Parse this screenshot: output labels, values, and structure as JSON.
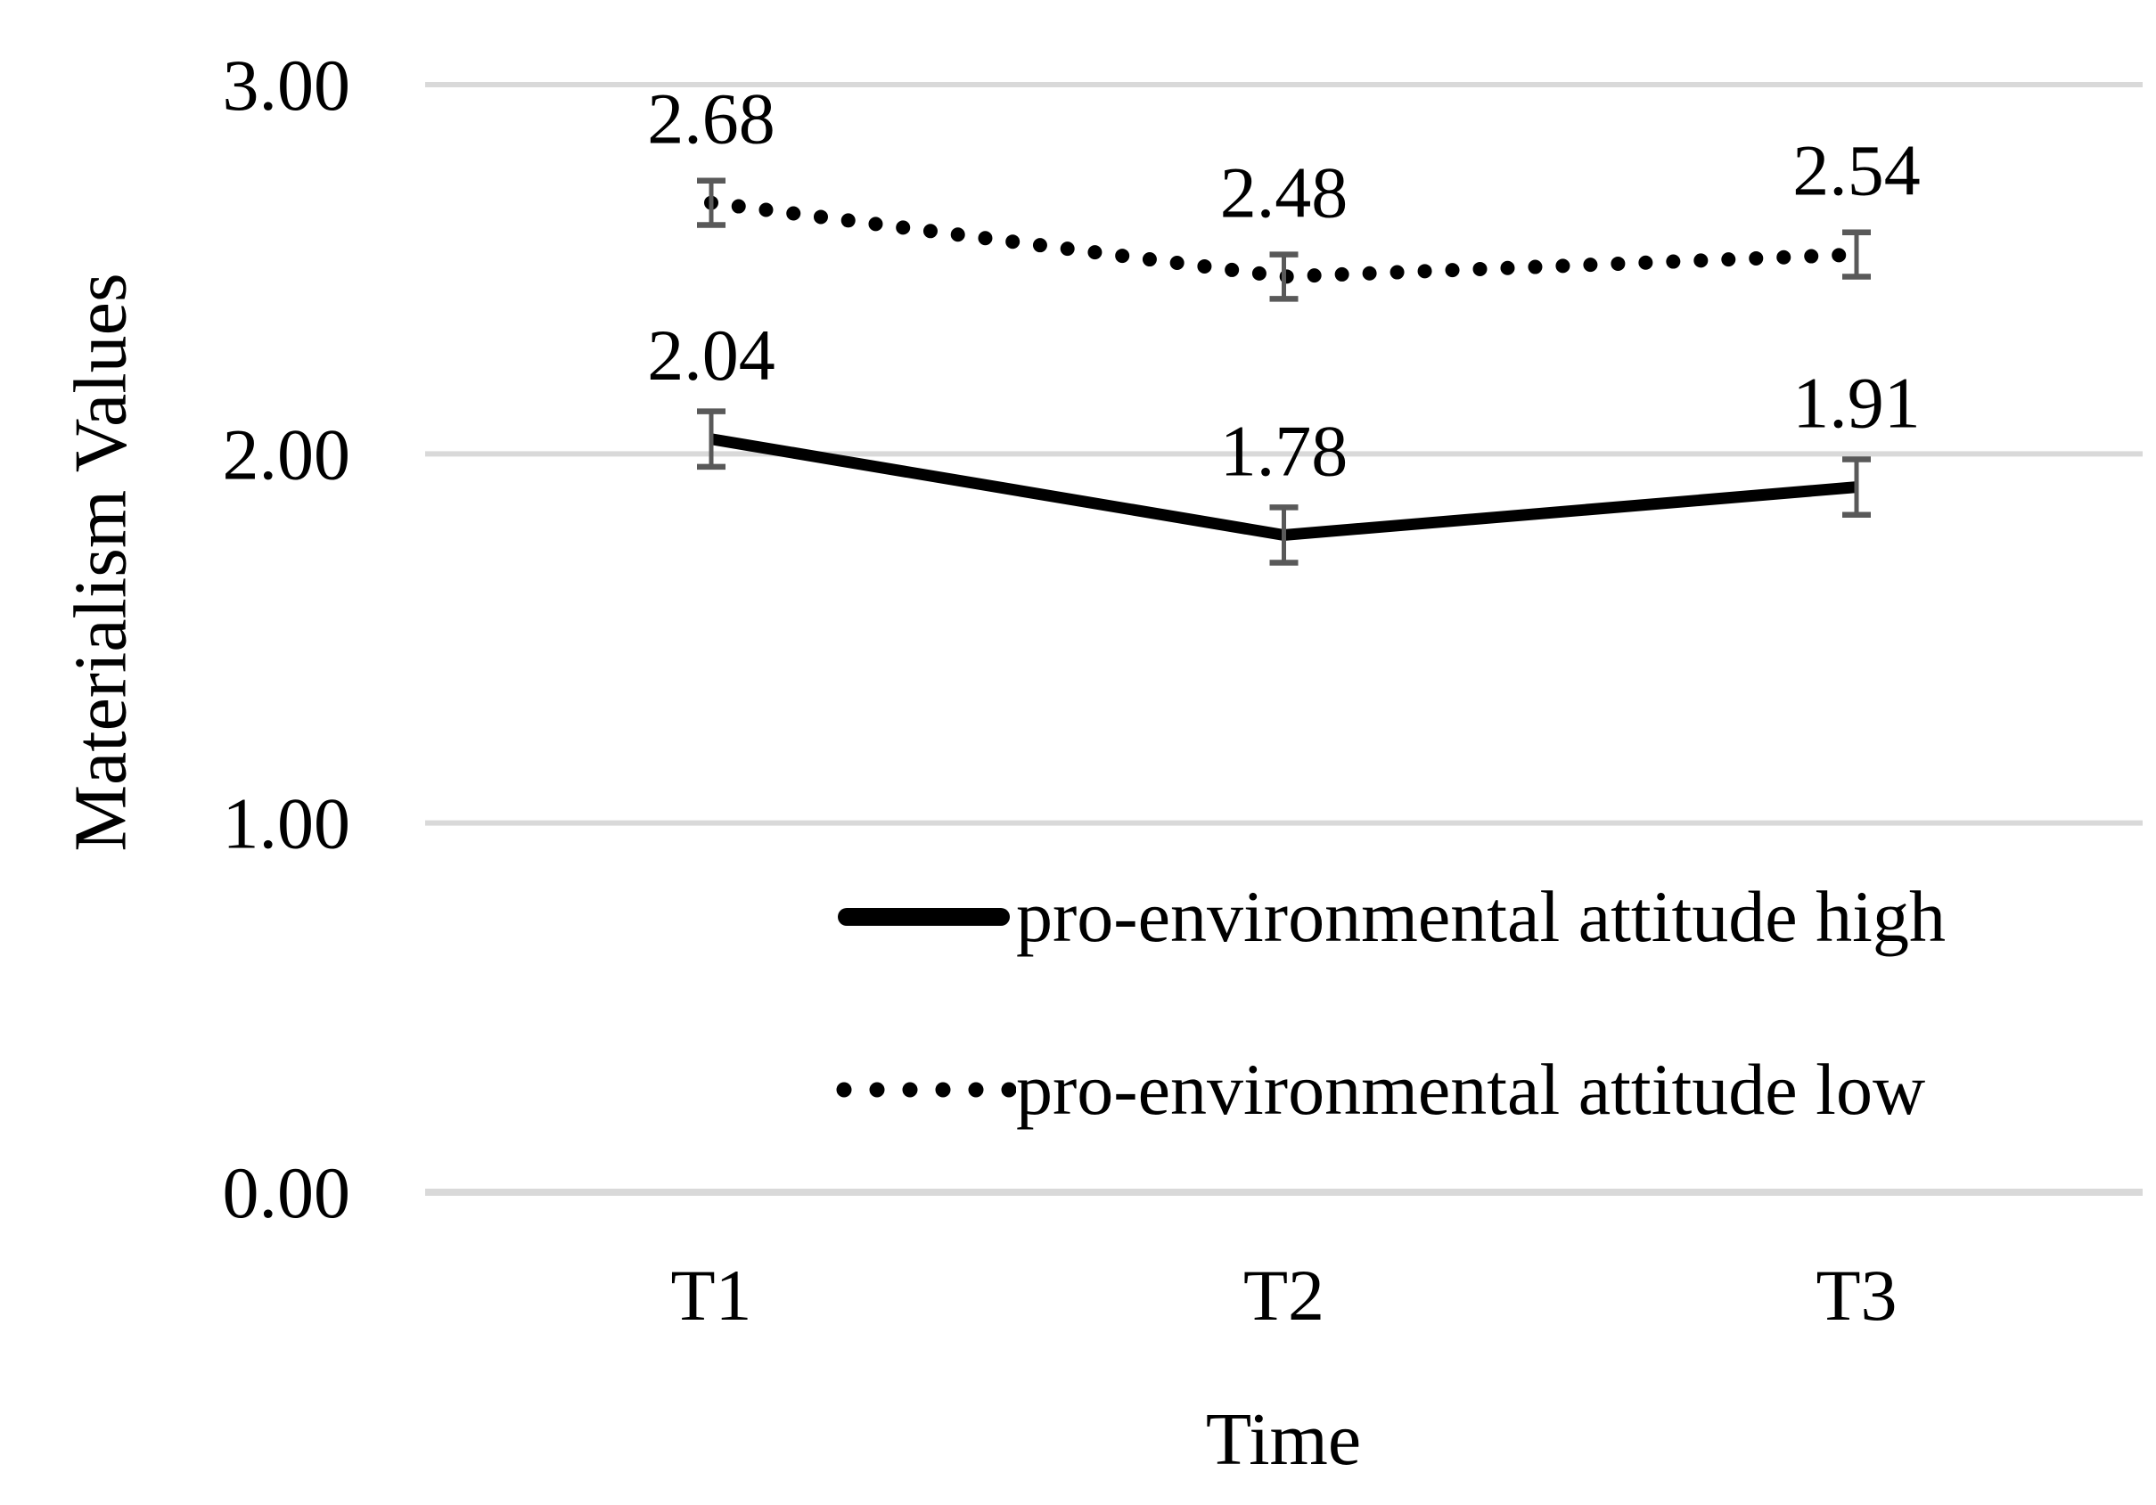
{
  "chart_data": {
    "type": "line",
    "title": "",
    "xlabel": "Time",
    "ylabel": "Materialism Values",
    "categories": [
      "T1",
      "T2",
      "T3"
    ],
    "y_ticks": [
      "3.00",
      "2.00",
      "1.00",
      "0.00"
    ],
    "ylim": [
      0,
      3
    ],
    "grid": "horizontal-on",
    "legend_position": "inside-bottom-right",
    "series": [
      {
        "name": "pro-environmental attitude high",
        "line_style": "solid",
        "color": "#000000",
        "values": [
          2.04,
          1.78,
          1.91
        ],
        "display_values": [
          "2.04",
          "1.78",
          "1.91"
        ],
        "error": 0.075
      },
      {
        "name": "pro-environmental attitude low",
        "line_style": "dotted",
        "color": "#000000",
        "values": [
          2.68,
          2.48,
          2.54
        ],
        "display_values": [
          "2.68",
          "2.48",
          "2.54"
        ],
        "error": 0.06
      }
    ],
    "gridline_color": "#d9d9d9",
    "error_bar_color": "#595959"
  }
}
